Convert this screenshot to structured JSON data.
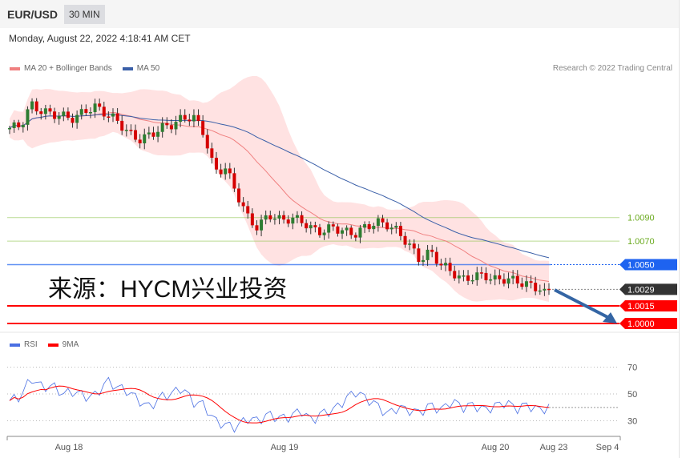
{
  "header": {
    "symbol": "EUR/USD",
    "timeframe": "30 MIN",
    "datetime": "Monday, August 22, 2022 4:18:41 AM CET",
    "credit": "Research © 2022 Trading Central"
  },
  "watermark": "来源：HYCM兴业投资",
  "colors": {
    "up": "#2e7d32",
    "down": "#d50000",
    "ma20": "#f08080",
    "band": "#ffd6d6",
    "ma50": "#3a5fa8",
    "support": "#ff0000",
    "resistance": "#8bc34a",
    "pivot": "#1e63f0",
    "last": "#333333",
    "arrow": "#3465a4",
    "rsi": "#4a6fe3",
    "rsi9ma": "#ff0000"
  },
  "chart_data": [
    {
      "type": "candlestick",
      "legend": [
        {
          "name": "MA 20 + Bollinger Bands"
        },
        {
          "name": "MA 50"
        }
      ],
      "closes": [
        1.0166,
        1.0168,
        1.0186,
        1.018,
        1.0178,
        1.0176,
        1.0174,
        1.0181,
        1.0184,
        1.0178,
        1.0172,
        1.0162,
        1.0156,
        1.016,
        1.0166,
        1.0169,
        1.0174,
        1.0176,
        1.0162,
        1.0129,
        1.0132,
        1.0112,
        1.0091,
        1.0081,
        1.0093,
        1.0088,
        1.0089,
        1.0088,
        1.008,
        1.0078,
        1.0082,
        1.0078,
        1.0076,
        1.0082,
        1.0086,
        1.0084,
        1.0078,
        1.0067,
        1.0054,
        1.0061,
        1.005,
        1.0044,
        1.0037,
        1.004,
        1.0041,
        1.0037,
        1.0038,
        1.0036,
        1.0033,
        1.003,
        1.0029
      ],
      "levels": [
        {
          "label": "1.0090",
          "value": 1.009,
          "kind": "resistance"
        },
        {
          "label": "1.0070",
          "value": 1.007,
          "kind": "resistance"
        },
        {
          "label": "1.0050",
          "value": 1.005,
          "kind": "pivot"
        },
        {
          "label": "1.0029",
          "value": 1.0029,
          "kind": "last"
        },
        {
          "label": "1.0015",
          "value": 1.0015,
          "kind": "support"
        },
        {
          "label": "1.0000",
          "value": 1.0,
          "kind": "support"
        }
      ],
      "forecast": "down"
    },
    {
      "type": "line",
      "legend": [
        {
          "name": "RSI"
        },
        {
          "name": "9MA"
        }
      ],
      "yticks": [
        "70",
        "50",
        "30"
      ],
      "rsi": [
        45,
        48,
        62,
        55,
        56,
        50,
        52,
        48,
        49,
        60,
        55,
        52,
        45,
        40,
        48,
        50,
        55,
        44,
        42,
        30,
        27,
        25,
        32,
        30,
        35,
        32,
        33,
        38,
        30,
        36,
        38,
        45,
        52,
        47,
        42,
        35,
        40,
        38,
        36,
        42,
        38,
        45,
        40,
        42,
        38,
        41,
        44,
        39,
        42,
        38,
        40
      ]
    },
    {
      "type": "axis",
      "xticks": [
        "Aug 18",
        "Aug 19",
        "Aug 20",
        "Aug 23",
        "Sep 4"
      ]
    }
  ]
}
